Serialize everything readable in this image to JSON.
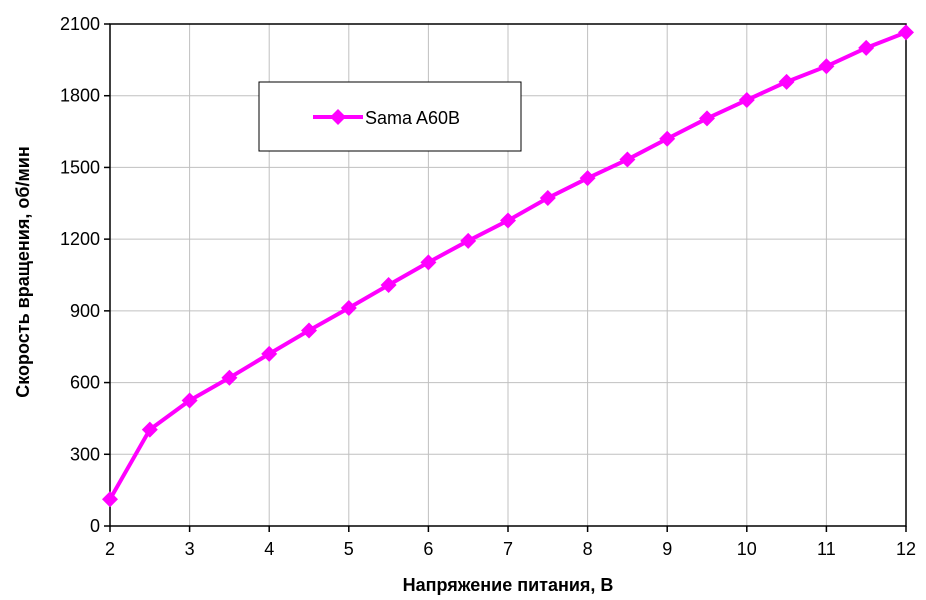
{
  "chart_data": {
    "type": "line",
    "title": "",
    "xlabel": "Напряжение питания, В",
    "ylabel": "Скорость вращения, об/мин",
    "xlim": [
      2,
      12
    ],
    "ylim": [
      0,
      2100
    ],
    "xticks": [
      2,
      3,
      4,
      5,
      6,
      7,
      8,
      9,
      10,
      11,
      12
    ],
    "yticks": [
      0,
      300,
      600,
      900,
      1200,
      1500,
      1800,
      2100
    ],
    "grid": true,
    "legend_position": "top-left",
    "series": [
      {
        "name": "Sama A60B",
        "color": "#ff00ff",
        "marker": "diamond",
        "x": [
          2,
          2.5,
          3,
          3.5,
          4,
          4.5,
          5,
          5.5,
          6,
          6.5,
          7,
          7.5,
          8,
          8.5,
          9,
          9.5,
          10,
          10.5,
          11,
          11.5,
          12
        ],
        "y": [
          112,
          403,
          525,
          620,
          720,
          818,
          912,
          1008,
          1103,
          1193,
          1278,
          1372,
          1455,
          1533,
          1620,
          1705,
          1782,
          1858,
          1923,
          2000,
          2065
        ]
      }
    ]
  }
}
